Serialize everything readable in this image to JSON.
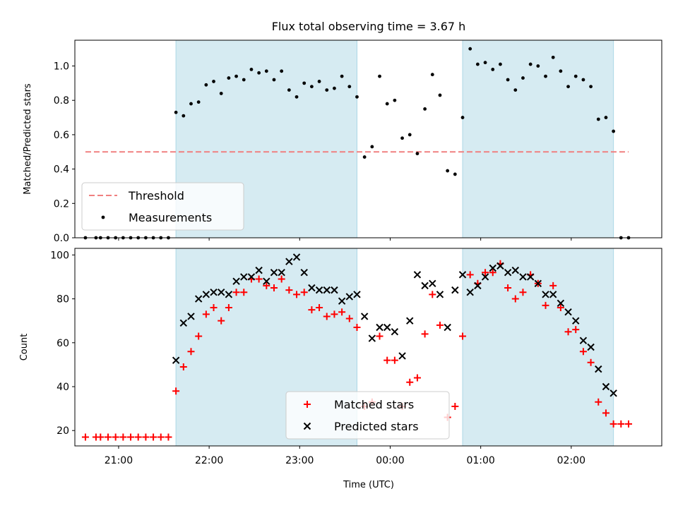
{
  "chart_data": [
    {
      "type": "scatter",
      "title": "Flux total observing time = 3.67 h",
      "xlabel": "",
      "ylabel": "Matched/Predicted stars",
      "xlim": [
        "20:31",
        "03:00"
      ],
      "ylim": [
        0,
        1.15
      ],
      "xticks": [
        "21:00",
        "22:00",
        "23:00",
        "00:00",
        "01:00",
        "02:00"
      ],
      "show_xticklabels": false,
      "yticks": [
        "0.0",
        "0.2",
        "0.4",
        "0.6",
        "0.8",
        "1.0"
      ],
      "grid": false,
      "legend_position": "lower left",
      "shaded_intervals": [
        [
          "21:38",
          "23:38"
        ],
        [
          "00:48",
          "02:28"
        ]
      ],
      "threshold": {
        "name": "Threshold",
        "y": 0.5,
        "x_start": "20:38",
        "x_end": "02:38",
        "color": "#f08080",
        "style": "dashed"
      },
      "series": [
        {
          "name": "Measurements",
          "marker": "dot",
          "color": "#000000",
          "points": [
            [
              "20:38",
              0.0
            ],
            [
              "20:45",
              0.0
            ],
            [
              "20:48",
              0.0
            ],
            [
              "20:53",
              0.0
            ],
            [
              "20:58",
              0.0
            ],
            [
              "21:03",
              0.0
            ],
            [
              "21:08",
              0.0
            ],
            [
              "21:13",
              0.0
            ],
            [
              "21:18",
              0.0
            ],
            [
              "21:23",
              0.0
            ],
            [
              "21:28",
              0.0
            ],
            [
              "21:33",
              0.0
            ],
            [
              "21:38",
              0.73
            ],
            [
              "21:43",
              0.71
            ],
            [
              "21:48",
              0.78
            ],
            [
              "21:53",
              0.79
            ],
            [
              "21:58",
              0.89
            ],
            [
              "22:03",
              0.91
            ],
            [
              "22:08",
              0.84
            ],
            [
              "22:13",
              0.93
            ],
            [
              "22:18",
              0.94
            ],
            [
              "22:23",
              0.92
            ],
            [
              "22:28",
              0.98
            ],
            [
              "22:33",
              0.96
            ],
            [
              "22:38",
              0.97
            ],
            [
              "22:43",
              0.92
            ],
            [
              "22:48",
              0.97
            ],
            [
              "22:53",
              0.86
            ],
            [
              "22:58",
              0.82
            ],
            [
              "23:03",
              0.9
            ],
            [
              "23:08",
              0.88
            ],
            [
              "23:13",
              0.91
            ],
            [
              "23:18",
              0.86
            ],
            [
              "23:23",
              0.87
            ],
            [
              "23:28",
              0.94
            ],
            [
              "23:33",
              0.88
            ],
            [
              "23:38",
              0.82
            ],
            [
              "23:43",
              0.47
            ],
            [
              "23:48",
              0.53
            ],
            [
              "23:53",
              0.94
            ],
            [
              "23:58",
              0.78
            ],
            [
              "00:03",
              0.8
            ],
            [
              "00:08",
              0.58
            ],
            [
              "00:13",
              0.6
            ],
            [
              "00:18",
              0.49
            ],
            [
              "00:23",
              0.75
            ],
            [
              "00:28",
              0.95
            ],
            [
              "00:33",
              0.83
            ],
            [
              "00:38",
              0.39
            ],
            [
              "00:43",
              0.37
            ],
            [
              "00:48",
              0.7
            ],
            [
              "00:53",
              1.1
            ],
            [
              "00:58",
              1.01
            ],
            [
              "01:03",
              1.02
            ],
            [
              "01:08",
              0.98
            ],
            [
              "01:13",
              1.01
            ],
            [
              "01:18",
              0.92
            ],
            [
              "01:23",
              0.86
            ],
            [
              "01:28",
              0.93
            ],
            [
              "01:33",
              1.01
            ],
            [
              "01:38",
              1.0
            ],
            [
              "01:43",
              0.94
            ],
            [
              "01:48",
              1.05
            ],
            [
              "01:53",
              0.97
            ],
            [
              "01:58",
              0.88
            ],
            [
              "02:03",
              0.94
            ],
            [
              "02:08",
              0.92
            ],
            [
              "02:13",
              0.88
            ],
            [
              "02:18",
              0.69
            ],
            [
              "02:23",
              0.7
            ],
            [
              "02:28",
              0.62
            ],
            [
              "02:33",
              0.0
            ],
            [
              "02:38",
              0.0
            ]
          ]
        }
      ]
    },
    {
      "type": "scatter",
      "title": "",
      "xlabel": "Time (UTC)",
      "ylabel": "Count",
      "xlim": [
        "20:31",
        "03:00"
      ],
      "ylim": [
        13,
        103
      ],
      "xticks": [
        "21:00",
        "22:00",
        "23:00",
        "00:00",
        "01:00",
        "02:00"
      ],
      "show_xticklabels": true,
      "yticks": [
        "20",
        "40",
        "60",
        "80",
        "100"
      ],
      "grid": false,
      "legend_position": "lower center",
      "shaded_intervals": [
        [
          "21:38",
          "23:38"
        ],
        [
          "00:48",
          "02:28"
        ]
      ],
      "series": [
        {
          "name": "Matched stars",
          "marker": "plus",
          "color": "#ff0000",
          "points": [
            [
              "20:38",
              17
            ],
            [
              "20:45",
              17
            ],
            [
              "20:48",
              17
            ],
            [
              "20:53",
              17
            ],
            [
              "20:58",
              17
            ],
            [
              "21:03",
              17
            ],
            [
              "21:08",
              17
            ],
            [
              "21:13",
              17
            ],
            [
              "21:18",
              17
            ],
            [
              "21:23",
              17
            ],
            [
              "21:28",
              17
            ],
            [
              "21:33",
              17
            ],
            [
              "21:38",
              38
            ],
            [
              "21:43",
              49
            ],
            [
              "21:48",
              56
            ],
            [
              "21:53",
              63
            ],
            [
              "21:58",
              73
            ],
            [
              "22:03",
              76
            ],
            [
              "22:08",
              70
            ],
            [
              "22:13",
              76
            ],
            [
              "22:18",
              83
            ],
            [
              "22:23",
              83
            ],
            [
              "22:28",
              89
            ],
            [
              "22:33",
              89
            ],
            [
              "22:38",
              86
            ],
            [
              "22:43",
              85
            ],
            [
              "22:48",
              89
            ],
            [
              "22:53",
              84
            ],
            [
              "22:58",
              82
            ],
            [
              "23:03",
              83
            ],
            [
              "23:08",
              75
            ],
            [
              "23:13",
              76
            ],
            [
              "23:18",
              72
            ],
            [
              "23:23",
              73
            ],
            [
              "23:28",
              74
            ],
            [
              "23:33",
              71
            ],
            [
              "23:38",
              67
            ],
            [
              "23:43",
              31
            ],
            [
              "23:48",
              33
            ],
            [
              "23:53",
              63
            ],
            [
              "23:58",
              52
            ],
            [
              "00:03",
              52
            ],
            [
              "00:08",
              31
            ],
            [
              "00:13",
              42
            ],
            [
              "00:18",
              44
            ],
            [
              "00:23",
              64
            ],
            [
              "00:28",
              82
            ],
            [
              "00:33",
              68
            ],
            [
              "00:38",
              26
            ],
            [
              "00:43",
              31
            ],
            [
              "00:48",
              63
            ],
            [
              "00:53",
              91
            ],
            [
              "00:58",
              87
            ],
            [
              "01:03",
              92
            ],
            [
              "01:08",
              92
            ],
            [
              "01:13",
              96
            ],
            [
              "01:18",
              85
            ],
            [
              "01:23",
              80
            ],
            [
              "01:28",
              83
            ],
            [
              "01:33",
              91
            ],
            [
              "01:38",
              87
            ],
            [
              "01:43",
              77
            ],
            [
              "01:48",
              86
            ],
            [
              "01:53",
              76
            ],
            [
              "01:58",
              65
            ],
            [
              "02:03",
              66
            ],
            [
              "02:08",
              56
            ],
            [
              "02:13",
              51
            ],
            [
              "02:18",
              33
            ],
            [
              "02:23",
              28
            ],
            [
              "02:28",
              23
            ],
            [
              "02:33",
              23
            ],
            [
              "02:38",
              23
            ]
          ]
        },
        {
          "name": "Predicted stars",
          "marker": "x",
          "color": "#000000",
          "points": [
            [
              "21:38",
              52
            ],
            [
              "21:43",
              69
            ],
            [
              "21:48",
              72
            ],
            [
              "21:53",
              80
            ],
            [
              "21:58",
              82
            ],
            [
              "22:03",
              83
            ],
            [
              "22:08",
              83
            ],
            [
              "22:13",
              82
            ],
            [
              "22:18",
              88
            ],
            [
              "22:23",
              90
            ],
            [
              "22:28",
              90
            ],
            [
              "22:33",
              93
            ],
            [
              "22:38",
              88
            ],
            [
              "22:43",
              92
            ],
            [
              "22:48",
              92
            ],
            [
              "22:53",
              97
            ],
            [
              "22:58",
              99
            ],
            [
              "23:03",
              92
            ],
            [
              "23:08",
              85
            ],
            [
              "23:13",
              84
            ],
            [
              "23:18",
              84
            ],
            [
              "23:23",
              84
            ],
            [
              "23:28",
              79
            ],
            [
              "23:33",
              81
            ],
            [
              "23:38",
              82
            ],
            [
              "23:43",
              72
            ],
            [
              "23:48",
              62
            ],
            [
              "23:53",
              67
            ],
            [
              "23:58",
              67
            ],
            [
              "00:03",
              65
            ],
            [
              "00:08",
              54
            ],
            [
              "00:13",
              70
            ],
            [
              "00:18",
              91
            ],
            [
              "00:23",
              86
            ],
            [
              "00:28",
              87
            ],
            [
              "00:33",
              82
            ],
            [
              "00:38",
              67
            ],
            [
              "00:43",
              84
            ],
            [
              "00:48",
              91
            ],
            [
              "00:53",
              83
            ],
            [
              "00:58",
              86
            ],
            [
              "01:03",
              90
            ],
            [
              "01:08",
              94
            ],
            [
              "01:13",
              95
            ],
            [
              "01:18",
              92
            ],
            [
              "01:23",
              93
            ],
            [
              "01:28",
              90
            ],
            [
              "01:33",
              90
            ],
            [
              "01:38",
              87
            ],
            [
              "01:43",
              82
            ],
            [
              "01:48",
              82
            ],
            [
              "01:53",
              78
            ],
            [
              "01:58",
              74
            ],
            [
              "02:03",
              70
            ],
            [
              "02:08",
              61
            ],
            [
              "02:13",
              58
            ],
            [
              "02:18",
              48
            ],
            [
              "02:23",
              40
            ],
            [
              "02:28",
              37
            ]
          ]
        }
      ]
    }
  ]
}
